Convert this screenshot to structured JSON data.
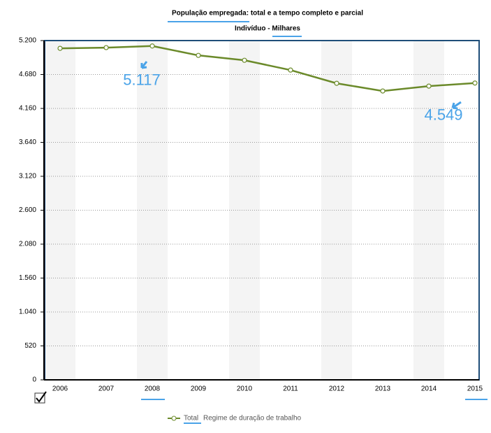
{
  "chart_data": {
    "type": "line",
    "title": "População empregada: total e a tempo completo e parcial",
    "subtitle": "Indivíduo - Milhares",
    "categories": [
      "2006",
      "2007",
      "2008",
      "2009",
      "2010",
      "2011",
      "2012",
      "2013",
      "2014",
      "2015"
    ],
    "series": [
      {
        "name": "Total",
        "color": "#6b8a2a",
        "values": [
          5081,
          5092,
          5117,
          4973,
          4898,
          4748,
          4545,
          4427,
          4502,
          4549
        ],
        "value_labels": [
          null,
          null,
          "5.117",
          null,
          null,
          null,
          null,
          null,
          null,
          "4.549"
        ]
      }
    ],
    "legend_note": "Regime de duração de trabalho",
    "ylim": [
      0,
      5200
    ],
    "yticks": [
      0,
      520,
      {
        "value": 1040,
        "label": "1.040"
      },
      {
        "value": 1560,
        "label": "1.560"
      },
      {
        "value": 2080,
        "label": "2.080"
      },
      {
        "value": 2600,
        "label": "2.600"
      },
      {
        "value": 3120,
        "label": "3.120"
      },
      {
        "value": 3640,
        "label": "3.640"
      },
      {
        "value": 4160,
        "label": "4.160"
      },
      {
        "value": 4680,
        "label": "4.680"
      },
      {
        "value": 5200,
        "label": "5.200"
      }
    ],
    "grid": true
  }
}
